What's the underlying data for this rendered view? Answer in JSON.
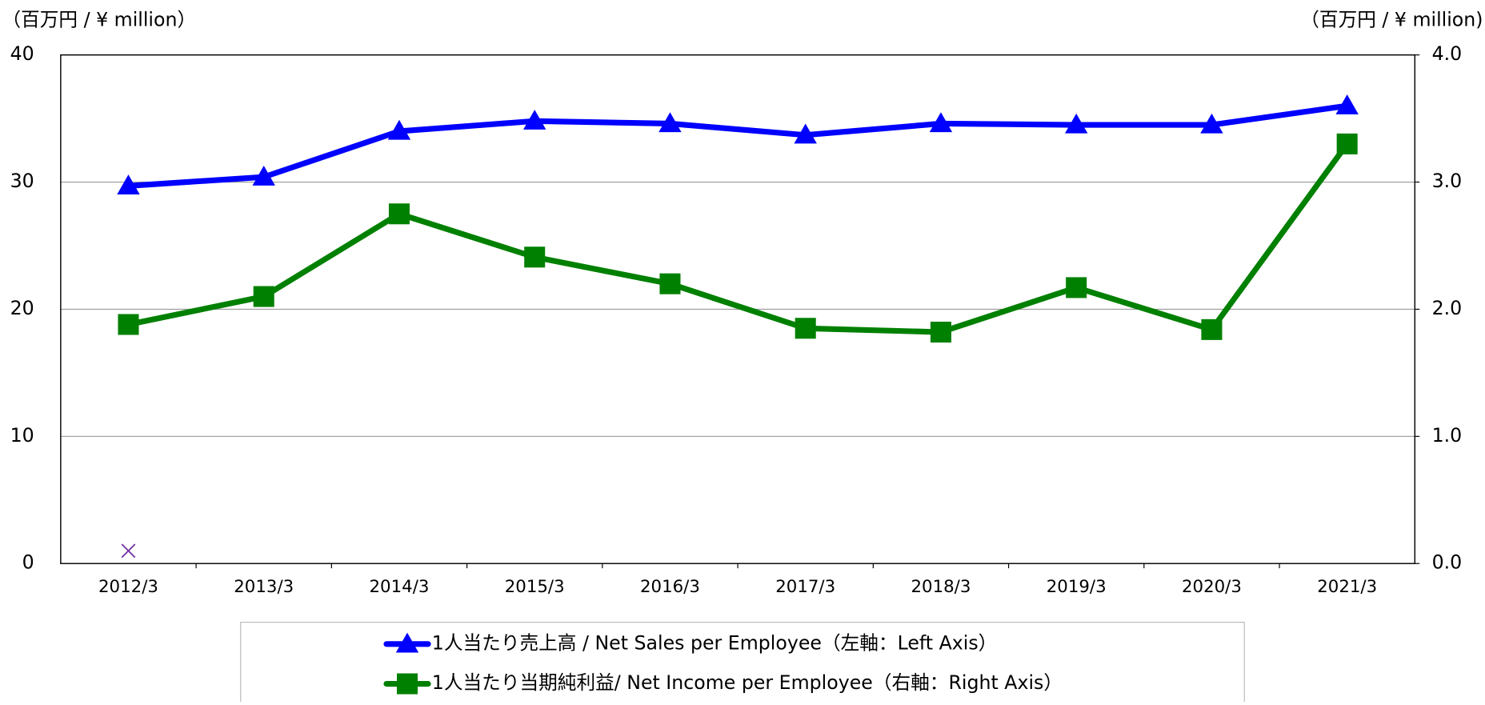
{
  "chart_data": {
    "type": "line",
    "y_label": "（百万円 / ¥ million）",
    "y2_label": "（百万円 / ¥ million)",
    "categories": [
      "2012/3",
      "2013/3",
      "2014/3",
      "2015/3",
      "2016/3",
      "2017/3",
      "2018/3",
      "2019/3",
      "2020/3",
      "2021/3"
    ],
    "series": [
      {
        "name": "1人当たり売上高 / Net Sales per Employee（左軸：Left Axis）",
        "color": "#0000ff",
        "marker": "triangle",
        "values": [
          29.7,
          30.4,
          34.0,
          34.8,
          34.6,
          33.7,
          34.6,
          34.5,
          34.5,
          36.0
        ]
      },
      {
        "name": "1人当たり当期純利益/ Net Income per Employee（右軸：Right Axis）",
        "color": "#008000",
        "marker": "square",
        "axis": "y2",
        "values": [
          1.88,
          2.1,
          2.75,
          2.41,
          2.2,
          1.85,
          1.82,
          2.17,
          1.84,
          3.3
        ]
      },
      {
        "color": "#7030a0",
        "marker": "x",
        "values": [
          1,
          null,
          null,
          null,
          null,
          null,
          null,
          null,
          null,
          null
        ]
      }
    ],
    "ylim": [
      0,
      40
    ],
    "yticks": [
      0,
      10,
      20,
      30,
      40
    ],
    "y2lim": [
      0,
      4
    ],
    "y2ticks": [
      {
        "value": 0,
        "label": "0.0"
      },
      {
        "value": 1,
        "label": "1.0"
      },
      {
        "value": 2,
        "label": "2.0"
      },
      {
        "value": 3,
        "label": "3.0"
      },
      {
        "value": 4,
        "label": "4.0"
      }
    ],
    "grid": true
  }
}
